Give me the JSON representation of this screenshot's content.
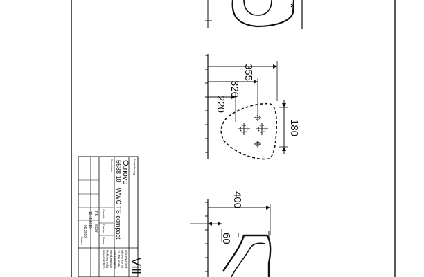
{
  "title_block": {
    "label_bezeichnung": "Bezeichnung",
    "product_name": "O.novo",
    "product_code": "5688 10 - WWC TS compact",
    "label_gezeichnet": "Gezeichnet",
    "label_geprueft": "Geprüft",
    "label_datum": "Datum",
    "label_name": "Name",
    "label_datum2": "Datum",
    "val_geprueft": "RK",
    "val_datum": "18.11.2010",
    "val_name": "SEW",
    "val_datum2": "09.2010",
    "brand_partial": "Vill",
    "note_lines": [
      "Ohne vorheri",
      "wieder verwe",
      "Zu Neuentwi",
      "Alle Verwertu",
      "Wettbewerbs",
      "Haftung aufg",
      "unverbindlich"
    ]
  },
  "dimensions": {
    "d355": "355",
    "d320": "320",
    "d220": "220",
    "d180": "180",
    "d400": "400",
    "d60": "60"
  }
}
